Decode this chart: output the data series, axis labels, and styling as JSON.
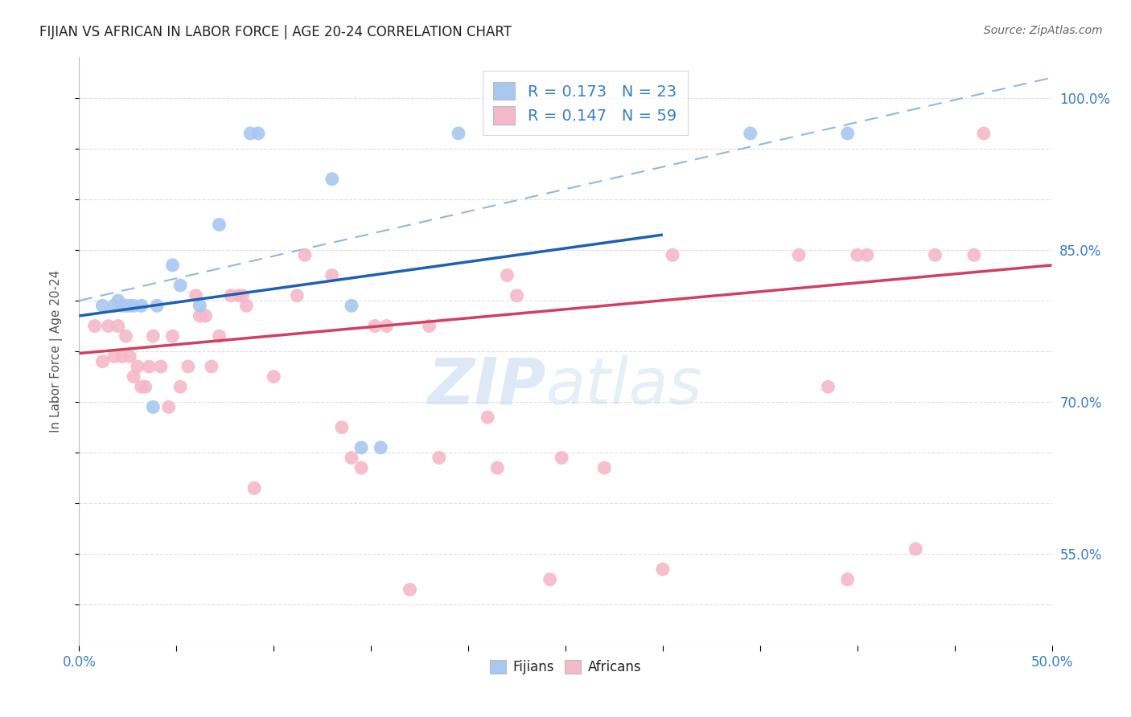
{
  "title": "FIJIAN VS AFRICAN IN LABOR FORCE | AGE 20-24 CORRELATION CHART",
  "source": "Source: ZipAtlas.com",
  "ylabel": "In Labor Force | Age 20-24",
  "xlim": [
    0.0,
    0.5
  ],
  "ylim": [
    0.46,
    1.04
  ],
  "x_ticks": [
    0.0,
    0.05,
    0.1,
    0.15,
    0.2,
    0.25,
    0.3,
    0.35,
    0.4,
    0.45,
    0.5
  ],
  "y_ticks": [
    0.5,
    0.55,
    0.6,
    0.65,
    0.7,
    0.75,
    0.8,
    0.85,
    0.9,
    0.95,
    1.0
  ],
  "y_right_labels": {
    "0.50": "",
    "0.55": "55.0%",
    "0.60": "",
    "0.65": "",
    "0.70": "70.0%",
    "0.75": "",
    "0.80": "",
    "0.85": "85.0%",
    "0.90": "",
    "0.95": "",
    "1.00": "100.0%"
  },
  "fijian_color": "#a8c8f0",
  "african_color": "#f5b8c8",
  "fijian_line_color": "#2060b0",
  "african_line_color": "#d04060",
  "dashed_line_color": "#90b8e0",
  "R_fijian": 0.173,
  "N_fijian": 23,
  "R_african": 0.147,
  "N_african": 59,
  "fijian_x": [
    0.012,
    0.018,
    0.02,
    0.022,
    0.024,
    0.026,
    0.028,
    0.032,
    0.038,
    0.04,
    0.048,
    0.052,
    0.062,
    0.072,
    0.088,
    0.092,
    0.13,
    0.14,
    0.145,
    0.155,
    0.195,
    0.345,
    0.395
  ],
  "fijian_y": [
    0.795,
    0.795,
    0.8,
    0.795,
    0.795,
    0.795,
    0.795,
    0.795,
    0.695,
    0.795,
    0.835,
    0.815,
    0.795,
    0.875,
    0.965,
    0.965,
    0.92,
    0.795,
    0.655,
    0.655,
    0.965,
    0.965,
    0.965
  ],
  "african_x": [
    0.008,
    0.012,
    0.015,
    0.018,
    0.02,
    0.022,
    0.024,
    0.026,
    0.028,
    0.03,
    0.032,
    0.034,
    0.036,
    0.038,
    0.042,
    0.046,
    0.048,
    0.052,
    0.056,
    0.06,
    0.062,
    0.065,
    0.068,
    0.072,
    0.078,
    0.082,
    0.084,
    0.086,
    0.09,
    0.1,
    0.112,
    0.116,
    0.13,
    0.135,
    0.14,
    0.145,
    0.152,
    0.158,
    0.17,
    0.18,
    0.185,
    0.21,
    0.215,
    0.22,
    0.225,
    0.242,
    0.248,
    0.27,
    0.3,
    0.305,
    0.37,
    0.385,
    0.395,
    0.4,
    0.405,
    0.43,
    0.44,
    0.46,
    0.465
  ],
  "african_y": [
    0.775,
    0.74,
    0.775,
    0.745,
    0.775,
    0.745,
    0.765,
    0.745,
    0.725,
    0.735,
    0.715,
    0.715,
    0.735,
    0.765,
    0.735,
    0.695,
    0.765,
    0.715,
    0.735,
    0.805,
    0.785,
    0.785,
    0.735,
    0.765,
    0.805,
    0.805,
    0.805,
    0.795,
    0.615,
    0.725,
    0.805,
    0.845,
    0.825,
    0.675,
    0.645,
    0.635,
    0.775,
    0.775,
    0.515,
    0.775,
    0.645,
    0.685,
    0.635,
    0.825,
    0.805,
    0.525,
    0.645,
    0.635,
    0.535,
    0.845,
    0.845,
    0.715,
    0.525,
    0.845,
    0.845,
    0.555,
    0.845,
    0.845,
    0.965
  ],
  "fijian_line_x0": 0.0,
  "fijian_line_y0": 0.785,
  "fijian_line_x1": 0.3,
  "fijian_line_y1": 0.865,
  "african_line_x0": 0.0,
  "african_line_y0": 0.748,
  "african_line_x1": 0.5,
  "african_line_y1": 0.835,
  "dashed_line_x0": 0.0,
  "dashed_line_y0": 0.8,
  "dashed_line_x1": 0.5,
  "dashed_line_y1": 1.02,
  "watermark_zip": "ZIP",
  "watermark_atlas": "atlas",
  "background_color": "#ffffff",
  "grid_color": "#d8d8d8"
}
